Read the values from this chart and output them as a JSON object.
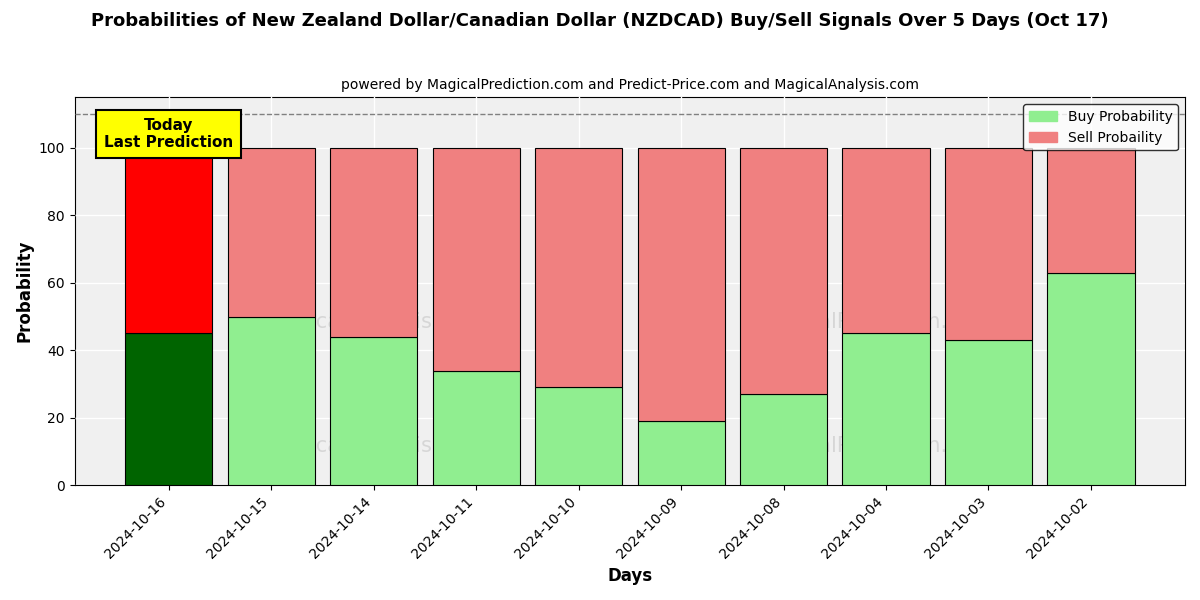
{
  "title": "Probabilities of New Zealand Dollar/Canadian Dollar (NZDCAD) Buy/Sell Signals Over 5 Days (Oct 17)",
  "subtitle": "powered by MagicalPrediction.com and Predict-Price.com and MagicalAnalysis.com",
  "xlabel": "Days",
  "ylabel": "Probability",
  "categories": [
    "2024-10-16",
    "2024-10-15",
    "2024-10-14",
    "2024-10-11",
    "2024-10-10",
    "2024-10-09",
    "2024-10-08",
    "2024-10-04",
    "2024-10-03",
    "2024-10-02"
  ],
  "buy_values": [
    45,
    50,
    44,
    34,
    29,
    19,
    27,
    45,
    43,
    63
  ],
  "sell_values": [
    55,
    50,
    56,
    66,
    71,
    81,
    73,
    55,
    57,
    37
  ],
  "buy_color_today": "#006400",
  "sell_color_today": "#ff0000",
  "buy_color_normal": "#90EE90",
  "sell_color_normal": "#F08080",
  "today_label": "Today\nLast Prediction",
  "today_bg_color": "#ffff00",
  "legend_buy": "Buy Probability",
  "legend_sell": "Sell Probaility",
  "ylim": [
    0,
    115
  ],
  "dashed_line_y": 110,
  "bar_width": 0.85,
  "figsize": [
    12,
    6
  ],
  "dpi": 100,
  "plot_bg_color": "#f0f0f0",
  "grid_color": "#ffffff",
  "title_fontsize": 13,
  "subtitle_fontsize": 10
}
